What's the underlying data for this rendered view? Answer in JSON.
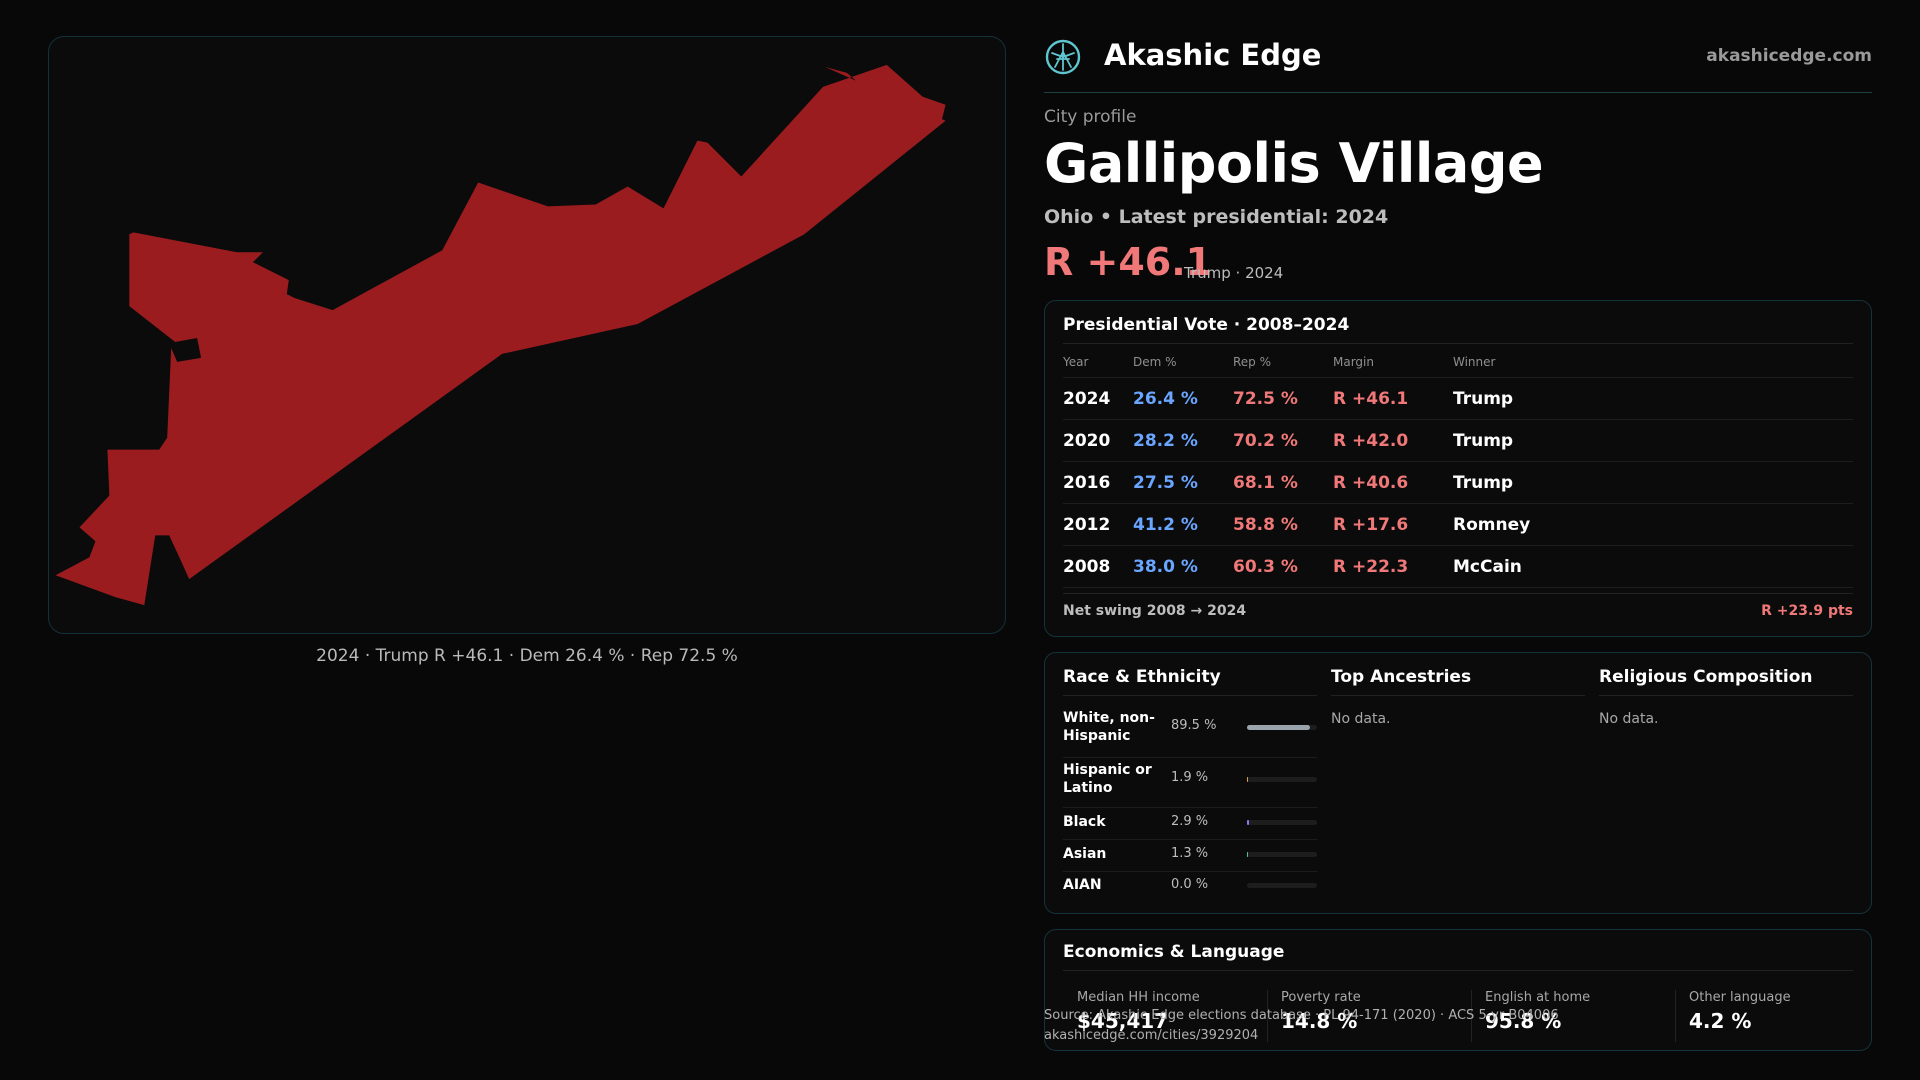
{
  "map": {
    "caption": "2024 · Trump R +46.1 · Dem 26.4 % · Rep 72.5 %",
    "fill_color": "#9b1c1f"
  },
  "header": {
    "logo_icon": "globe-logo-icon",
    "brand": "Akashic Edge",
    "site": "akashicedge.com"
  },
  "profile": {
    "kicker": "City profile",
    "title": "Gallipolis Village",
    "subtitle": "Ohio • Latest presidential: 2024",
    "margin": "R +46.1",
    "margin_note": "Trump · 2024"
  },
  "presidential": {
    "title": "Presidential Vote · 2008–2024",
    "columns": [
      "Year",
      "Dem %",
      "Rep %",
      "Margin",
      "Winner"
    ],
    "rows": [
      {
        "year": "2024",
        "dem": "26.4 %",
        "rep": "72.5 %",
        "margin": "R +46.1",
        "winner": "Trump"
      },
      {
        "year": "2020",
        "dem": "28.2 %",
        "rep": "70.2 %",
        "margin": "R +42.0",
        "winner": "Trump"
      },
      {
        "year": "2016",
        "dem": "27.5 %",
        "rep": "68.1 %",
        "margin": "R +40.6",
        "winner": "Trump"
      },
      {
        "year": "2012",
        "dem": "41.2 %",
        "rep": "58.8 %",
        "margin": "R +17.6",
        "winner": "Romney"
      },
      {
        "year": "2008",
        "dem": "38.0 %",
        "rep": "60.3 %",
        "margin": "R +22.3",
        "winner": "McCain"
      }
    ],
    "swing_label": "Net swing 2008 → 2024",
    "swing_value": "R +23.9 pts"
  },
  "race": {
    "title": "Race & Ethnicity",
    "rows": [
      {
        "label": "White, non-Hispanic",
        "pct": "89.5 %",
        "share": 0.895,
        "color": "#9aa4ad"
      },
      {
        "label": "Hispanic or Latino",
        "pct": "1.9 %",
        "share": 0.019,
        "color": "#d9a441"
      },
      {
        "label": "Black",
        "pct": "2.9 %",
        "share": 0.029,
        "color": "#8c7cf0"
      },
      {
        "label": "Asian",
        "pct": "1.3 %",
        "share": 0.013,
        "color": "#4fc3a1"
      },
      {
        "label": "AIAN",
        "pct": "0.0 %",
        "share": 0.0,
        "color": "#cc6a6a"
      }
    ]
  },
  "ancestries": {
    "title": "Top Ancestries",
    "empty": "No data."
  },
  "religion": {
    "title": "Religious Composition",
    "empty": "No data."
  },
  "economics": {
    "title": "Economics & Language",
    "cells": [
      {
        "label": "Median HH income",
        "value": "$45,417"
      },
      {
        "label": "Poverty rate",
        "value": "14.8 %"
      },
      {
        "label": "English at home",
        "value": "95.8 %"
      },
      {
        "label": "Other language",
        "value": "4.2 %"
      }
    ]
  },
  "source": {
    "line1": "Source: Akashic Edge elections database · PL 94-171 (2020) · ACS 5-yr B04006",
    "line2": "akashicedge.com/cities/3929204"
  }
}
